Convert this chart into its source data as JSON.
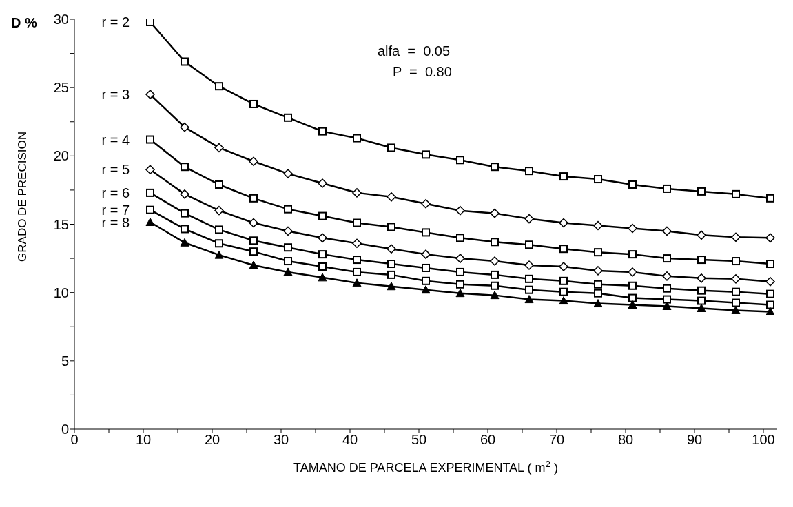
{
  "chart_data": {
    "type": "line",
    "xlabel": "TAMANO DE PARCELA EXPERIMENTAL ( m$^{2}$ )",
    "ylabel": "GRADO DE PRECISION",
    "annotations": [
      "D %",
      "alfa  =  0.05",
      "P  =  0.80"
    ],
    "x": [
      11,
      16,
      21,
      26,
      31,
      36,
      41,
      46,
      51,
      56,
      61,
      66,
      71,
      76,
      81,
      86,
      91,
      96,
      101
    ],
    "xlim": [
      0,
      102
    ],
    "xticks": [
      0,
      {
        "value": 5,
        "label": null
      },
      10,
      {
        "value": 15,
        "label": null
      },
      20,
      {
        "value": 25,
        "label": null
      },
      30,
      {
        "value": 35,
        "label": null
      },
      40,
      {
        "value": 45,
        "label": null
      },
      50,
      {
        "value": 55,
        "label": null
      },
      60,
      {
        "value": 65,
        "label": null
      },
      70,
      {
        "value": 75,
        "label": null
      },
      80,
      {
        "value": 85,
        "label": null
      },
      90,
      {
        "value": 95,
        "label": null
      },
      100
    ],
    "ylim": [
      0,
      30
    ],
    "yticks": [
      0,
      {
        "value": 2.5,
        "label": null
      },
      5,
      {
        "value": 7.5,
        "label": null
      },
      10,
      {
        "value": 12.5,
        "label": null
      },
      15,
      {
        "value": 17.5,
        "label": null
      },
      20,
      {
        "value": 22.5,
        "label": null
      },
      25,
      {
        "value": 27.5,
        "label": null
      },
      30
    ],
    "grid": false,
    "legend": false,
    "line_style": "solid",
    "series": [
      {
        "name": "r = 2",
        "color": "#000000",
        "marker": "square",
        "values": [
          29.8,
          26.9,
          25.1,
          23.8,
          22.8,
          21.8,
          21.3,
          20.6,
          20.1,
          19.7,
          19.2,
          18.9,
          18.5,
          18.3,
          17.9,
          17.6,
          17.4,
          17.2,
          16.9
        ]
      },
      {
        "name": "r = 3",
        "color": "#000000",
        "marker": "diamond",
        "values": [
          24.5,
          22.1,
          20.6,
          19.6,
          18.7,
          18.0,
          17.3,
          17.0,
          16.5,
          16.0,
          15.8,
          15.4,
          15.1,
          14.9,
          14.7,
          14.5,
          14.2,
          14.05,
          14.0
        ]
      },
      {
        "name": "r = 4",
        "color": "#000000",
        "marker": "square",
        "values": [
          21.2,
          19.2,
          17.9,
          16.9,
          16.1,
          15.6,
          15.1,
          14.8,
          14.4,
          14.0,
          13.7,
          13.5,
          13.2,
          12.95,
          12.8,
          12.5,
          12.4,
          12.3,
          12.1
        ]
      },
      {
        "name": "r = 5",
        "color": "#000000",
        "marker": "diamond",
        "values": [
          19.0,
          17.2,
          16.0,
          15.1,
          14.5,
          14.0,
          13.6,
          13.2,
          12.8,
          12.5,
          12.3,
          12.0,
          11.9,
          11.6,
          11.5,
          11.2,
          11.05,
          11.0,
          10.8
        ]
      },
      {
        "name": "r = 6",
        "color": "#000000",
        "marker": "square",
        "values": [
          17.3,
          15.8,
          14.6,
          13.8,
          13.3,
          12.8,
          12.4,
          12.1,
          11.8,
          11.5,
          11.3,
          11.0,
          10.85,
          10.6,
          10.5,
          10.3,
          10.15,
          10.05,
          9.9
        ]
      },
      {
        "name": "r = 7",
        "color": "#000000",
        "marker": "square",
        "values": [
          16.05,
          14.65,
          13.6,
          13.0,
          12.3,
          11.9,
          11.5,
          11.3,
          10.85,
          10.6,
          10.5,
          10.2,
          10.05,
          9.95,
          9.6,
          9.5,
          9.4,
          9.25,
          9.1
        ]
      },
      {
        "name": "r = 8",
        "color": "#000000",
        "marker": "triangle",
        "values": [
          15.15,
          13.65,
          12.75,
          12.0,
          11.5,
          11.1,
          10.7,
          10.45,
          10.2,
          9.95,
          9.8,
          9.5,
          9.4,
          9.2,
          9.1,
          9.0,
          8.85,
          8.7,
          8.6
        ]
      }
    ]
  }
}
